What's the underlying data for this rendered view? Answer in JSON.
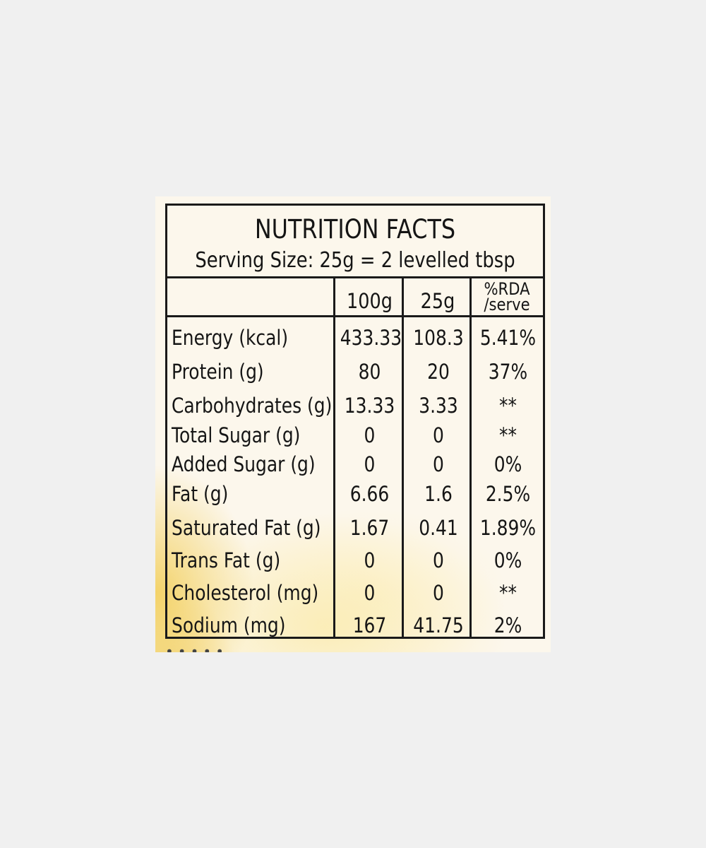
{
  "label": {
    "title": "NUTRITION FACTS",
    "serving_size": "Serving Size: 25g = 2 levelled tbsp",
    "columns": {
      "per_100g": "100g",
      "per_25g": "25g",
      "rda_line1": "%RDA",
      "rda_line2": "/serve"
    },
    "rows": [
      {
        "name": "Energy (kcal)",
        "per_100g": "433.33",
        "per_25g": "108.3",
        "rda": "5.41%"
      },
      {
        "name": "Protein (g)",
        "per_100g": "80",
        "per_25g": "20",
        "rda": "37%"
      },
      {
        "name": "Carbohydrates (g)",
        "per_100g": "13.33",
        "per_25g": "3.33",
        "rda": "**"
      },
      {
        "name": "Total Sugar (g)",
        "per_100g": "0",
        "per_25g": "0",
        "rda": "**"
      },
      {
        "name": "Added Sugar (g)",
        "per_100g": "0",
        "per_25g": "0",
        "rda": "0%"
      },
      {
        "name": "Fat (g)",
        "per_100g": "6.66",
        "per_25g": "1.6",
        "rda": "2.5%"
      },
      {
        "name": "Saturated Fat (g)",
        "per_100g": "1.67",
        "per_25g": "0.41",
        "rda": "1.89%"
      },
      {
        "name": "Trans Fat (g)",
        "per_100g": "0",
        "per_25g": "0",
        "rda": "0%"
      },
      {
        "name": "Cholesterol (mg)",
        "per_100g": "0",
        "per_25g": "0",
        "rda": "**"
      },
      {
        "name": "Sodium (mg)",
        "per_100g": "167",
        "per_25g": "41.75",
        "rda": "2%"
      }
    ]
  },
  "colors": {
    "background": "#f0f0f0",
    "paper": "#fcf7ec",
    "ink": "#151515",
    "yellow_tint": "#f2cd55"
  }
}
